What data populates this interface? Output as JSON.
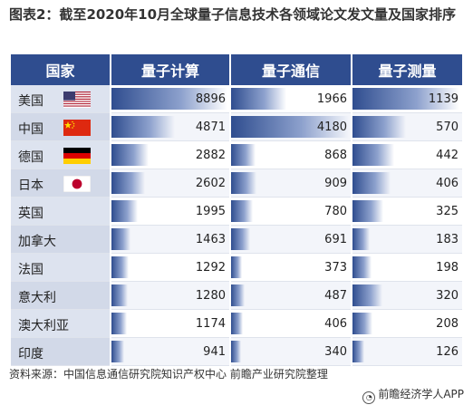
{
  "title": "图表2：截至2020年10月全球量子信息技术各领域论文发文量及国家排序",
  "chart_data": {
    "type": "table",
    "columns": [
      "国家",
      "量子计算",
      "量子通信",
      "量子测量"
    ],
    "rows": [
      {
        "country": "美国",
        "flag": "us-flag-icon",
        "values": [
          8896,
          1966,
          1139
        ]
      },
      {
        "country": "中国",
        "flag": "cn-flag-icon",
        "values": [
          4871,
          4180,
          570
        ]
      },
      {
        "country": "德国",
        "flag": "de-flag-icon",
        "values": [
          2882,
          868,
          442
        ]
      },
      {
        "country": "日本",
        "flag": "jp-flag-icon",
        "values": [
          2602,
          909,
          406
        ]
      },
      {
        "country": "英国",
        "flag": "",
        "values": [
          1995,
          780,
          325
        ]
      },
      {
        "country": "加拿大",
        "flag": "",
        "values": [
          1463,
          691,
          183
        ]
      },
      {
        "country": "法国",
        "flag": "",
        "values": [
          1292,
          373,
          198
        ]
      },
      {
        "country": "意大利",
        "flag": "",
        "values": [
          1280,
          487,
          320
        ]
      },
      {
        "country": "澳大利亚",
        "flag": "",
        "values": [
          1174,
          406,
          208
        ]
      },
      {
        "country": "印度",
        "flag": "",
        "values": [
          941,
          340,
          126
        ]
      }
    ],
    "bar_color": "#2f4d8f",
    "header_color": "#2f4d8f"
  },
  "source": "资料来源：中国信息通信研究院知识产权中心 前瞻产业研究院整理",
  "credit": "前瞻经济学人APP"
}
